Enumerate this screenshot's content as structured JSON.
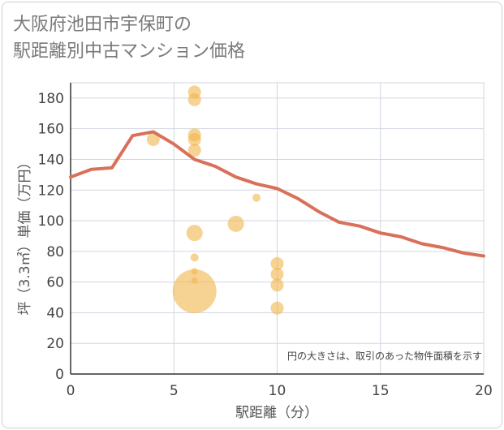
{
  "chart_data": {
    "type": "scatter",
    "title_lines": [
      "大阪府池田市宇保町の",
      "駅距離別中古マンション価格"
    ],
    "xlabel": "駅距離（分）",
    "ylabel": "坪（3.3㎡）単価（万円）",
    "xlim": [
      0,
      20
    ],
    "ylim": [
      0,
      190
    ],
    "x_ticks": [
      0,
      5,
      10,
      15,
      20
    ],
    "y_ticks": [
      0,
      20,
      40,
      60,
      80,
      100,
      120,
      140,
      160,
      180
    ],
    "grid": true,
    "note": "円の大きさは、取引のあった物件面積を示す",
    "colors": {
      "line": "#d9705a",
      "bubble": "#f2b64b",
      "grid": "#d0d6e0"
    },
    "series": [
      {
        "type": "line",
        "x": [
          0,
          1,
          2,
          3,
          4,
          5,
          6,
          7,
          8,
          9,
          10,
          11,
          12,
          13,
          14,
          15,
          16,
          17,
          18,
          19,
          20
        ],
        "y": [
          128.5,
          133.5,
          134.5,
          155.5,
          158,
          150,
          140,
          135.5,
          128.5,
          124,
          121,
          114.5,
          106,
          99,
          96.5,
          92,
          89.5,
          85,
          82.5,
          79,
          77
        ]
      },
      {
        "type": "bubble",
        "points": [
          {
            "x": 4,
            "y": 153,
            "size": 8
          },
          {
            "x": 6,
            "y": 184,
            "size": 8
          },
          {
            "x": 6,
            "y": 179,
            "size": 8
          },
          {
            "x": 6,
            "y": 156,
            "size": 8
          },
          {
            "x": 6,
            "y": 153,
            "size": 8
          },
          {
            "x": 6,
            "y": 146,
            "size": 8
          },
          {
            "x": 6,
            "y": 92,
            "size": 10
          },
          {
            "x": 6,
            "y": 76,
            "size": 5
          },
          {
            "x": 6,
            "y": 67,
            "size": 4
          },
          {
            "x": 6,
            "y": 61,
            "size": 4
          },
          {
            "x": 6,
            "y": 54,
            "size": 27
          },
          {
            "x": 8,
            "y": 98,
            "size": 10
          },
          {
            "x": 9,
            "y": 115,
            "size": 5
          },
          {
            "x": 10,
            "y": 72,
            "size": 8
          },
          {
            "x": 10,
            "y": 65,
            "size": 8
          },
          {
            "x": 10,
            "y": 58,
            "size": 8
          },
          {
            "x": 10,
            "y": 43,
            "size": 8
          }
        ]
      }
    ]
  }
}
